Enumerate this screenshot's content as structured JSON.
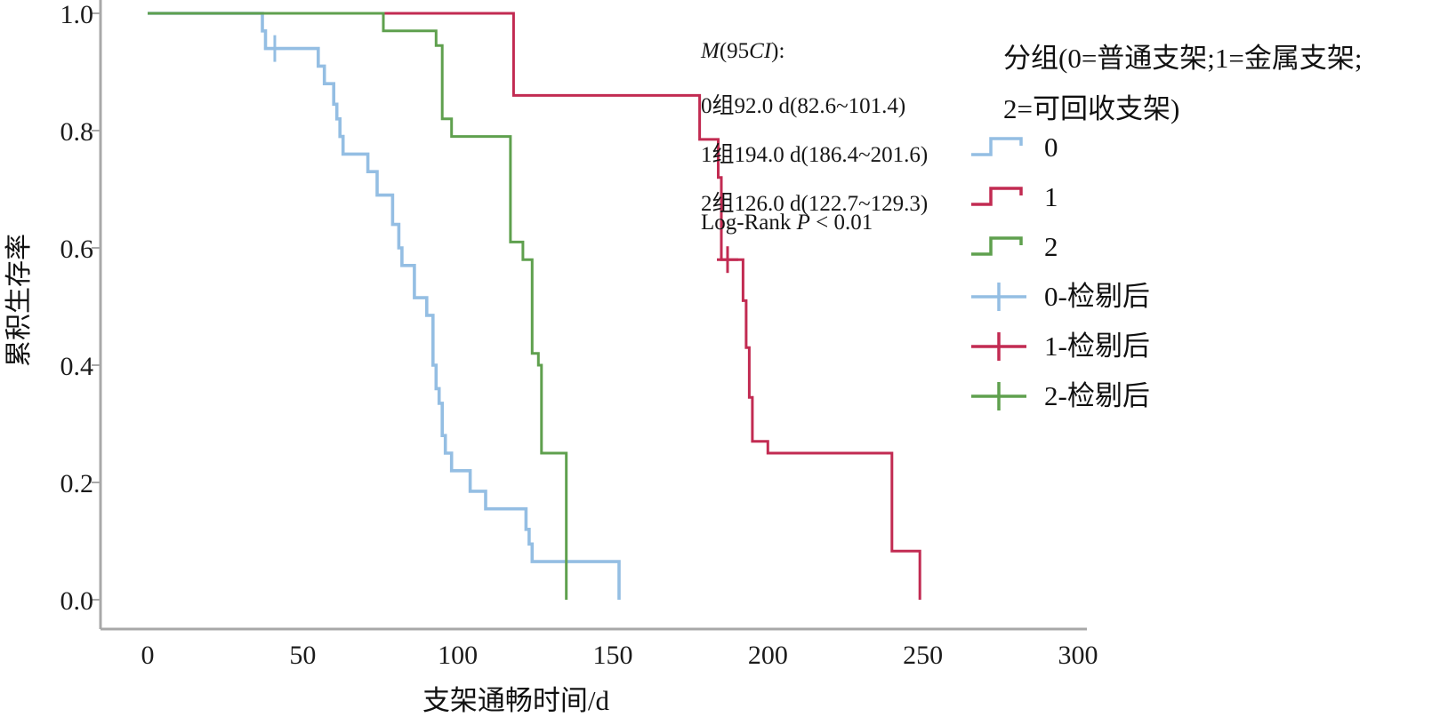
{
  "figure": {
    "y_axis_title": "累积生存率",
    "x_axis_title": "支架通畅时间/d"
  },
  "annotation": {
    "m_line": [
      "M",
      "(95",
      "CI",
      "):"
    ],
    "group_lines": [
      "0组92.0 d(82.6~101.4)",
      "1组194.0 d(186.4~201.6)",
      "2组126.0 d(122.7~129.3)"
    ],
    "logrank": [
      "Log-Rank ",
      "P",
      " < 0.01"
    ]
  },
  "legend": {
    "title_line1": "分组(0=普通支架;1=金属支架;",
    "title_line2": "2=可回收支架)",
    "entries": [
      {
        "label": "0",
        "key": "step",
        "color": "#94BEE3"
      },
      {
        "label": "1",
        "key": "step",
        "color": "#C22B52"
      },
      {
        "label": "2",
        "key": "step",
        "color": "#5FA04E"
      },
      {
        "label": "0-检剔后",
        "key": "cross",
        "color": "#94BEE3"
      },
      {
        "label": "1-检剔后",
        "key": "cross",
        "color": "#C22B52"
      },
      {
        "label": "2-检剔后",
        "key": "cross",
        "color": "#5FA04E"
      }
    ]
  },
  "chart_data": {
    "type": "line",
    "subtype": "kaplan-meier-step-survival",
    "title": "",
    "xlabel": "支架通畅时间/d",
    "ylabel": "累积生存率",
    "xlim": [
      0,
      300
    ],
    "xticks": [
      0,
      50,
      100,
      150,
      200,
      250,
      300
    ],
    "ylim": [
      0.0,
      1.0
    ],
    "yticks": [
      0.0,
      0.2,
      0.4,
      0.6,
      0.8,
      1.0
    ],
    "grid": false,
    "legend_position": "right",
    "axis_color": "#A8A8A8",
    "tick_label_color": "#1b1b1b",
    "stats": {
      "median_95ci": {
        "group0": "92.0 d (82.6~101.4)",
        "group1": "194.0 d (186.4~201.6)",
        "group2": "126.0 d (122.7~129.3)"
      },
      "log_rank_p": "< 0.01"
    },
    "series": [
      {
        "name": "0",
        "group": "普通支架",
        "color": "#94BEE3",
        "width": 3.6,
        "steps": [
          [
            37,
            0.97
          ],
          [
            38,
            0.94
          ],
          [
            55,
            0.91
          ],
          [
            57,
            0.88
          ],
          [
            60,
            0.845
          ],
          [
            61,
            0.82
          ],
          [
            62,
            0.79
          ],
          [
            63,
            0.76
          ],
          [
            71,
            0.73
          ],
          [
            74,
            0.69
          ],
          [
            79,
            0.64
          ],
          [
            81,
            0.6
          ],
          [
            82,
            0.57
          ],
          [
            86,
            0.515
          ],
          [
            90,
            0.485
          ],
          [
            92,
            0.4
          ],
          [
            93,
            0.36
          ],
          [
            94,
            0.335
          ],
          [
            95,
            0.28
          ],
          [
            96,
            0.25
          ],
          [
            98,
            0.22
          ],
          [
            104,
            0.185
          ],
          [
            109,
            0.155
          ],
          [
            122,
            0.12
          ],
          [
            123,
            0.095
          ],
          [
            124,
            0.065
          ],
          [
            152,
            0.0
          ]
        ],
        "censored": [
          [
            41,
            0.94
          ]
        ]
      },
      {
        "name": "1",
        "group": "金属支架",
        "color": "#C22B52",
        "width": 3.0,
        "steps": [
          [
            118,
            0.86
          ],
          [
            178,
            0.785
          ],
          [
            184,
            0.72
          ],
          [
            185,
            0.58
          ],
          [
            192,
            0.51
          ],
          [
            193,
            0.43
          ],
          [
            194,
            0.345
          ],
          [
            195,
            0.27
          ],
          [
            200,
            0.25
          ],
          [
            240,
            0.083
          ],
          [
            249,
            0.0
          ]
        ],
        "censored": [
          [
            187,
            0.58
          ]
        ]
      },
      {
        "name": "2",
        "group": "可回收支架",
        "color": "#5FA04E",
        "width": 3.0,
        "steps": [
          [
            76,
            0.97
          ],
          [
            93,
            0.945
          ],
          [
            95,
            0.82
          ],
          [
            98,
            0.79
          ],
          [
            117,
            0.61
          ],
          [
            121,
            0.58
          ],
          [
            124,
            0.42
          ],
          [
            126,
            0.4
          ],
          [
            127,
            0.25
          ],
          [
            135,
            0.0
          ]
        ],
        "censored": []
      }
    ]
  }
}
